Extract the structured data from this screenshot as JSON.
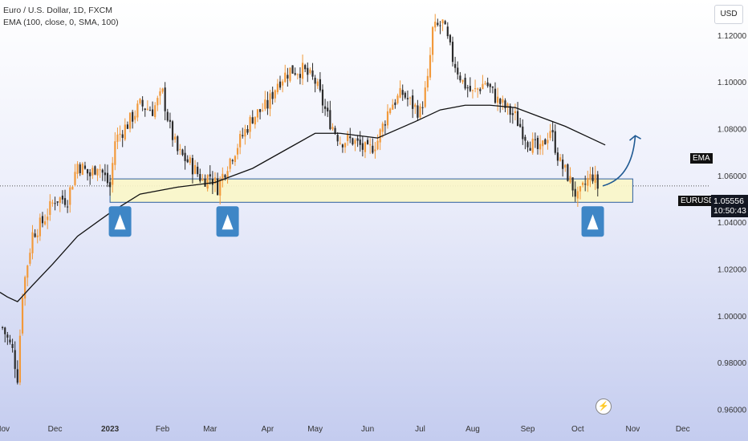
{
  "header": {
    "title": "Euro / U.S. Dollar, 1D, FXCM",
    "indicator": "EMA (100, close, 0, SMA, 100)"
  },
  "axis": {
    "currency": "USD"
  },
  "labels": {
    "ema_tag": "EMA",
    "symbol_tag": "EURUSD",
    "price": "1.05556",
    "countdown": "10:50:43"
  },
  "icons": {
    "flash": "flash-icon",
    "arrow_up": "triangle-up-icon"
  },
  "colors": {
    "bull": "#f2993a",
    "bear": "#2b2b2b",
    "ema": "#111111",
    "zone_fill": "#fbf6c6",
    "zone_border": "#2d5fa0",
    "marker": "#3e86c6",
    "projection": "#1f5a93"
  },
  "chart_data": {
    "type": "candlestick",
    "symbol": "EURUSD",
    "timeframe": "1D",
    "y_axis": {
      "range": [
        0.955,
        1.135
      ],
      "ticks": [
        0.96,
        0.98,
        1.0,
        1.02,
        1.04,
        1.06,
        1.08,
        1.1,
        1.12
      ],
      "tick_labels": [
        "0.96000",
        "0.98000",
        "1.00000",
        "1.02000",
        "1.04000",
        "1.06000",
        "1.08000",
        "1.10000",
        "1.12000"
      ]
    },
    "x_axis": {
      "labels": [
        "Nov",
        "Dec",
        "2023",
        "Feb",
        "Mar",
        "Apr",
        "May",
        "Jun",
        "Jul",
        "Aug",
        "Sep",
        "Oct",
        "Nov",
        "Dec"
      ],
      "ticks": [
        0,
        21,
        43,
        64,
        83,
        106,
        125,
        146,
        167,
        188,
        210,
        230,
        252,
        272
      ],
      "range": [
        -1,
        283
      ]
    },
    "close_path": [
      [
        0,
        0.995
      ],
      [
        4,
        0.985
      ],
      [
        6,
        0.974
      ],
      [
        8,
        1.01
      ],
      [
        12,
        1.035
      ],
      [
        16,
        1.04
      ],
      [
        21,
        1.05
      ],
      [
        26,
        1.05
      ],
      [
        30,
        1.065
      ],
      [
        35,
        1.06
      ],
      [
        38,
        1.065
      ],
      [
        43,
        1.055
      ],
      [
        45,
        1.075
      ],
      [
        50,
        1.082
      ],
      [
        55,
        1.09
      ],
      [
        60,
        1.088
      ],
      [
        64,
        1.095
      ],
      [
        67,
        1.08
      ],
      [
        70,
        1.07
      ],
      [
        75,
        1.065
      ],
      [
        80,
        1.058
      ],
      [
        83,
        1.06
      ],
      [
        86,
        1.055
      ],
      [
        90,
        1.065
      ],
      [
        95,
        1.075
      ],
      [
        100,
        1.085
      ],
      [
        106,
        1.09
      ],
      [
        110,
        1.1
      ],
      [
        115,
        1.105
      ],
      [
        120,
        1.105
      ],
      [
        125,
        1.1
      ],
      [
        130,
        1.085
      ],
      [
        135,
        1.075
      ],
      [
        140,
        1.075
      ],
      [
        146,
        1.07
      ],
      [
        150,
        1.075
      ],
      [
        155,
        1.09
      ],
      [
        160,
        1.095
      ],
      [
        164,
        1.09
      ],
      [
        167,
        1.087
      ],
      [
        170,
        1.1
      ],
      [
        172,
        1.122
      ],
      [
        176,
        1.125
      ],
      [
        180,
        1.11
      ],
      [
        184,
        1.1
      ],
      [
        188,
        1.095
      ],
      [
        193,
        1.1
      ],
      [
        198,
        1.092
      ],
      [
        205,
        1.085
      ],
      [
        210,
        1.075
      ],
      [
        215,
        1.07
      ],
      [
        219,
        1.08
      ],
      [
        223,
        1.065
      ],
      [
        226,
        1.06
      ],
      [
        230,
        1.05
      ],
      [
        234,
        1.058
      ],
      [
        236,
        1.06
      ],
      [
        238,
        1.055
      ]
    ],
    "ema_100": [
      [
        -1,
        1.01
      ],
      [
        2,
        1.008
      ],
      [
        6,
        1.006
      ],
      [
        12,
        1.013
      ],
      [
        20,
        1.022
      ],
      [
        30,
        1.034
      ],
      [
        43,
        1.044
      ],
      [
        55,
        1.052
      ],
      [
        70,
        1.055
      ],
      [
        85,
        1.057
      ],
      [
        100,
        1.063
      ],
      [
        115,
        1.072
      ],
      [
        125,
        1.078
      ],
      [
        135,
        1.078
      ],
      [
        150,
        1.076
      ],
      [
        165,
        1.083
      ],
      [
        175,
        1.088
      ],
      [
        185,
        1.09
      ],
      [
        195,
        1.09
      ],
      [
        205,
        1.089
      ],
      [
        215,
        1.085
      ],
      [
        225,
        1.081
      ],
      [
        235,
        1.076
      ],
      [
        241,
        1.073
      ]
    ],
    "support_zone": {
      "x_range": [
        43,
        252
      ],
      "y_range": [
        1.0485,
        1.0585
      ]
    },
    "support_markers": [
      47,
      90,
      236
    ],
    "projection": [
      [
        240,
        1.0555
      ],
      [
        253,
        1.077
      ]
    ],
    "last_price": 1.05556,
    "current_price_line": 1.0555,
    "annotations": [
      "EMA",
      "EURUSD"
    ]
  }
}
